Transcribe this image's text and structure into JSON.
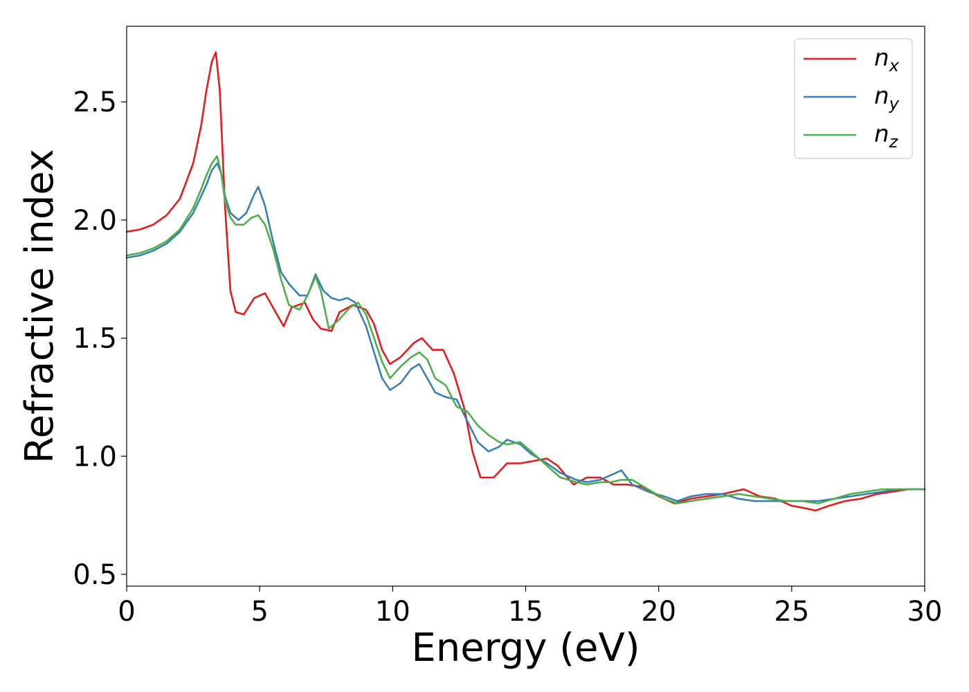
{
  "chart_data": {
    "type": "line",
    "xlabel": "Energy (eV)",
    "ylabel": "Refractive index",
    "xlim": [
      0,
      30
    ],
    "ylim": [
      0.45,
      2.82
    ],
    "xticks": [
      0,
      5,
      10,
      15,
      20,
      25,
      30
    ],
    "yticks": [
      0.5,
      1.0,
      1.5,
      2.0,
      2.5
    ],
    "xtick_labels": [
      "0",
      "5",
      "10",
      "15",
      "20",
      "25",
      "30"
    ],
    "ytick_labels": [
      "0.5",
      "1.0",
      "1.5",
      "2.0",
      "2.5"
    ],
    "grid": false,
    "legend_position": "top-right",
    "series": [
      {
        "name": "n",
        "subscript": "x",
        "color": "#e41a1c",
        "x": [
          0,
          0.5,
          1.0,
          1.5,
          2.0,
          2.5,
          2.8,
          3.0,
          3.2,
          3.35,
          3.5,
          3.7,
          3.9,
          4.1,
          4.4,
          4.8,
          5.2,
          5.5,
          5.9,
          6.2,
          6.7,
          7.0,
          7.3,
          7.7,
          8.0,
          8.5,
          9.0,
          9.3,
          9.6,
          9.9,
          10.3,
          10.8,
          11.1,
          11.5,
          11.9,
          12.3,
          12.7,
          13.0,
          13.3,
          13.8,
          14.3,
          14.8,
          15.3,
          15.8,
          16.2,
          16.8,
          17.3,
          17.8,
          18.3,
          18.8,
          19.4,
          20.0,
          20.6,
          21.2,
          21.8,
          22.4,
          23.2,
          23.8,
          24.4,
          25.0,
          25.5,
          25.9,
          26.4,
          27.0,
          27.6,
          28.2,
          28.8,
          29.4,
          30.0
        ],
        "values": [
          1.95,
          1.96,
          1.98,
          2.02,
          2.09,
          2.24,
          2.4,
          2.55,
          2.67,
          2.71,
          2.55,
          2.05,
          1.7,
          1.61,
          1.6,
          1.67,
          1.69,
          1.63,
          1.55,
          1.63,
          1.65,
          1.58,
          1.54,
          1.53,
          1.61,
          1.64,
          1.62,
          1.56,
          1.45,
          1.39,
          1.42,
          1.48,
          1.5,
          1.45,
          1.45,
          1.35,
          1.2,
          1.02,
          0.91,
          0.91,
          0.97,
          0.97,
          0.98,
          0.99,
          0.96,
          0.88,
          0.91,
          0.91,
          0.88,
          0.88,
          0.87,
          0.83,
          0.8,
          0.82,
          0.83,
          0.84,
          0.86,
          0.83,
          0.82,
          0.79,
          0.78,
          0.77,
          0.79,
          0.81,
          0.82,
          0.84,
          0.85,
          0.86,
          0.86
        ]
      },
      {
        "name": "n",
        "subscript": "y",
        "color": "#377eb8",
        "x": [
          0,
          0.5,
          1.0,
          1.5,
          2.0,
          2.5,
          2.8,
          3.0,
          3.2,
          3.4,
          3.55,
          3.7,
          3.9,
          4.2,
          4.5,
          4.8,
          4.95,
          5.2,
          5.5,
          5.8,
          6.1,
          6.5,
          6.8,
          7.1,
          7.4,
          7.7,
          8.0,
          8.3,
          8.6,
          9.0,
          9.3,
          9.6,
          9.9,
          10.3,
          10.7,
          11.0,
          11.3,
          11.6,
          12.0,
          12.4,
          12.8,
          13.2,
          13.6,
          14.0,
          14.3,
          14.8,
          15.2,
          15.8,
          16.3,
          16.9,
          17.3,
          17.8,
          18.2,
          18.6,
          19.0,
          19.6,
          20.2,
          20.7,
          21.2,
          21.8,
          22.4,
          23.0,
          23.6,
          24.2,
          24.8,
          25.4,
          26.0,
          26.6,
          27.2,
          27.8,
          28.4,
          29.0,
          29.6,
          30.0
        ],
        "values": [
          1.84,
          1.85,
          1.87,
          1.9,
          1.95,
          2.03,
          2.1,
          2.15,
          2.21,
          2.24,
          2.2,
          2.1,
          2.03,
          2.0,
          2.03,
          2.11,
          2.14,
          2.06,
          1.91,
          1.78,
          1.73,
          1.68,
          1.68,
          1.77,
          1.7,
          1.67,
          1.66,
          1.67,
          1.65,
          1.55,
          1.44,
          1.33,
          1.28,
          1.31,
          1.37,
          1.39,
          1.33,
          1.27,
          1.25,
          1.24,
          1.15,
          1.06,
          1.02,
          1.04,
          1.07,
          1.05,
          1.01,
          0.97,
          0.93,
          0.9,
          0.89,
          0.9,
          0.92,
          0.94,
          0.88,
          0.85,
          0.83,
          0.81,
          0.83,
          0.84,
          0.84,
          0.82,
          0.81,
          0.81,
          0.81,
          0.81,
          0.81,
          0.82,
          0.83,
          0.84,
          0.85,
          0.86,
          0.86,
          0.86
        ]
      },
      {
        "name": "n",
        "subscript": "z",
        "color": "#4daf4a",
        "x": [
          0,
          0.5,
          1.0,
          1.5,
          2.0,
          2.5,
          2.8,
          3.0,
          3.2,
          3.4,
          3.55,
          3.7,
          3.9,
          4.1,
          4.4,
          4.7,
          4.95,
          5.2,
          5.5,
          5.8,
          6.1,
          6.5,
          6.8,
          7.1,
          7.3,
          7.6,
          8.0,
          8.4,
          8.7,
          9.0,
          9.3,
          9.6,
          9.9,
          10.3,
          10.7,
          11.0,
          11.3,
          11.6,
          12.0,
          12.4,
          12.8,
          13.2,
          13.6,
          14.0,
          14.3,
          14.8,
          15.2,
          15.8,
          16.3,
          16.9,
          17.3,
          17.8,
          18.2,
          18.6,
          19.0,
          19.6,
          20.2,
          20.7,
          21.2,
          21.8,
          22.4,
          23.0,
          23.6,
          24.2,
          24.8,
          25.4,
          26.0,
          26.6,
          27.2,
          27.8,
          28.4,
          29.0,
          29.6,
          30.0
        ],
        "values": [
          1.85,
          1.86,
          1.88,
          1.91,
          1.96,
          2.05,
          2.13,
          2.19,
          2.24,
          2.27,
          2.2,
          2.08,
          2.01,
          1.98,
          1.98,
          2.01,
          2.02,
          1.98,
          1.88,
          1.75,
          1.64,
          1.62,
          1.68,
          1.76,
          1.7,
          1.54,
          1.58,
          1.63,
          1.65,
          1.6,
          1.5,
          1.4,
          1.33,
          1.38,
          1.42,
          1.44,
          1.41,
          1.33,
          1.3,
          1.21,
          1.19,
          1.13,
          1.09,
          1.06,
          1.05,
          1.06,
          1.02,
          0.96,
          0.91,
          0.89,
          0.88,
          0.89,
          0.89,
          0.9,
          0.9,
          0.86,
          0.82,
          0.8,
          0.81,
          0.82,
          0.83,
          0.84,
          0.83,
          0.82,
          0.81,
          0.81,
          0.8,
          0.82,
          0.84,
          0.85,
          0.86,
          0.86,
          0.86,
          0.86
        ]
      }
    ]
  }
}
